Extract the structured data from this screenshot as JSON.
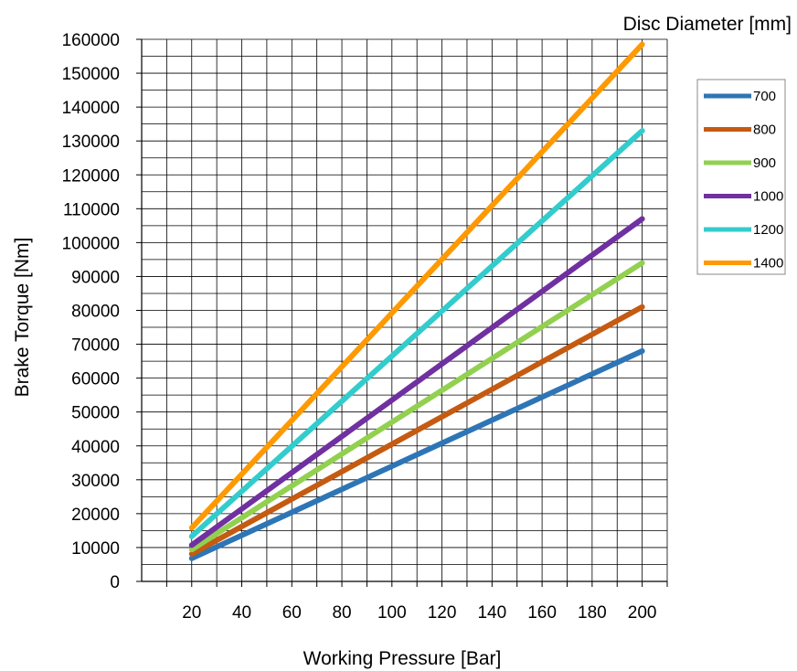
{
  "chart_data": {
    "type": "line",
    "title": "",
    "xlabel": "Working Pressure [Bar]",
    "ylabel": "Brake Torque [Nm]",
    "legend_title": "Disc Diameter [mm]",
    "legend_position": "right",
    "grid": true,
    "xlim": [
      0,
      210
    ],
    "ylim": [
      0,
      160000
    ],
    "x_ticks": [
      20,
      40,
      60,
      80,
      100,
      120,
      140,
      160,
      180,
      200
    ],
    "y_ticks": [
      0,
      10000,
      20000,
      30000,
      40000,
      50000,
      60000,
      70000,
      80000,
      90000,
      100000,
      110000,
      120000,
      130000,
      140000,
      150000,
      160000
    ],
    "x": [
      20,
      200
    ],
    "series": [
      {
        "name": "700",
        "color": "#2E75B6",
        "values": [
          6800,
          68000
        ]
      },
      {
        "name": "800",
        "color": "#C55A11",
        "values": [
          8100,
          81000
        ]
      },
      {
        "name": "900",
        "color": "#92D050",
        "values": [
          9400,
          94000
        ]
      },
      {
        "name": "1000",
        "color": "#7030A0",
        "values": [
          10700,
          107000
        ]
      },
      {
        "name": "1200",
        "color": "#33CCCC",
        "values": [
          13300,
          133000
        ]
      },
      {
        "name": "1400",
        "color": "#FF9900",
        "values": [
          15800,
          158500
        ]
      }
    ]
  }
}
